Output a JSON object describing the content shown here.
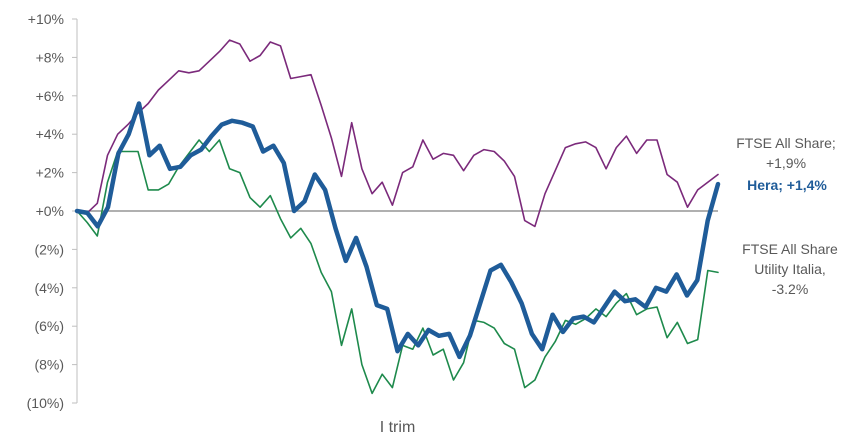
{
  "chart_data": {
    "type": "line",
    "xlabel": "I trim",
    "ylim": [
      -10,
      10
    ],
    "yticks": [
      {
        "value": 10,
        "label": "+10%"
      },
      {
        "value": 8,
        "label": "+8%"
      },
      {
        "value": 6,
        "label": "+6%"
      },
      {
        "value": 4,
        "label": "+4%"
      },
      {
        "value": 2,
        "label": "+2%"
      },
      {
        "value": 0,
        "label": "+0%"
      },
      {
        "value": -2,
        "label": "(2%)"
      },
      {
        "value": -4,
        "label": "(4%)"
      },
      {
        "value": -6,
        "label": "(6%)"
      },
      {
        "value": -8,
        "label": "(8%)"
      },
      {
        "value": -10,
        "label": "(10%)"
      }
    ],
    "zero_line": true,
    "grid": false,
    "series": [
      {
        "name": "FTSE All Share",
        "label_lines": [
          "FTSE All Share;",
          "+1,9%"
        ],
        "color": "#7b2a7b",
        "values": [
          0.0,
          -0.1,
          0.4,
          2.9,
          4.0,
          4.5,
          5.1,
          5.6,
          6.3,
          6.8,
          7.3,
          7.2,
          7.3,
          7.8,
          8.3,
          8.9,
          8.7,
          7.8,
          8.1,
          8.8,
          8.6,
          6.9,
          7.0,
          7.1,
          5.5,
          3.8,
          1.8,
          4.6,
          2.2,
          0.9,
          1.5,
          0.3,
          2.0,
          2.3,
          3.7,
          2.7,
          3.0,
          2.9,
          2.1,
          2.9,
          3.2,
          3.1,
          2.6,
          1.8,
          -0.5,
          -0.8,
          0.9,
          2.1,
          3.3,
          3.5,
          3.6,
          3.3,
          2.2,
          3.3,
          3.9,
          3.0,
          3.7,
          3.7,
          1.9,
          1.5,
          0.2,
          1.1,
          1.5,
          1.9
        ]
      },
      {
        "name": "Hera",
        "label_lines": [
          "Hera; +1,4%"
        ],
        "color": "#1f5c99",
        "values": [
          0.0,
          -0.1,
          -0.8,
          0.2,
          3.0,
          4.0,
          5.6,
          2.9,
          3.4,
          2.2,
          2.3,
          2.9,
          3.2,
          3.9,
          4.5,
          4.7,
          4.6,
          4.4,
          3.1,
          3.4,
          2.5,
          0.0,
          0.5,
          1.9,
          1.1,
          -0.9,
          -2.6,
          -1.4,
          -2.9,
          -4.9,
          -5.1,
          -7.3,
          -6.4,
          -7.0,
          -6.2,
          -6.5,
          -6.4,
          -7.6,
          -6.5,
          -4.8,
          -3.1,
          -2.8,
          -3.7,
          -4.8,
          -6.4,
          -7.2,
          -5.4,
          -6.3,
          -5.6,
          -5.5,
          -5.8,
          -5.0,
          -4.2,
          -4.7,
          -4.6,
          -5.0,
          -4.0,
          -4.2,
          -3.3,
          -4.4,
          -3.6,
          -0.5,
          1.4
        ]
      },
      {
        "name": "FTSE All Share Utility Italia",
        "label_lines": [
          "FTSE All Share",
          "Utility Italia,",
          "-3.2%"
        ],
        "color": "#1e8a4c",
        "values": [
          0.0,
          -0.6,
          -1.3,
          1.5,
          3.1,
          3.1,
          3.1,
          1.1,
          1.1,
          1.4,
          2.3,
          3.0,
          3.7,
          3.1,
          3.7,
          2.2,
          2.0,
          0.7,
          0.2,
          0.8,
          -0.4,
          -1.4,
          -0.9,
          -1.7,
          -3.2,
          -4.2,
          -7.0,
          -5.1,
          -8.0,
          -9.5,
          -8.5,
          -9.2,
          -7.0,
          -7.2,
          -6.1,
          -7.5,
          -7.2,
          -8.8,
          -7.9,
          -5.7,
          -5.8,
          -6.1,
          -6.9,
          -7.2,
          -9.2,
          -8.8,
          -7.6,
          -6.8,
          -5.7,
          -5.9,
          -5.6,
          -5.1,
          -5.5,
          -4.8,
          -4.3,
          -5.4,
          -5.1,
          -5.0,
          -6.6,
          -5.8,
          -6.9,
          -6.7,
          -3.1,
          -3.2
        ]
      }
    ]
  }
}
